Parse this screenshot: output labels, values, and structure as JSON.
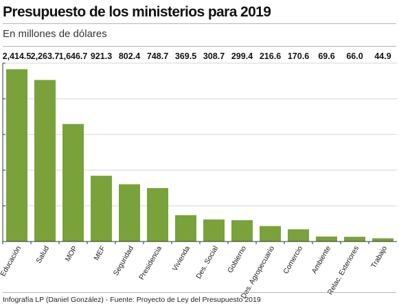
{
  "header": {
    "title": "Presupuesto de los ministerios para 2019",
    "subtitle": "En millones de dólares"
  },
  "footer": {
    "credit": "Infografía LP (Daniel González) - Fuente: Proyecto de Ley del Presupuesto 2019"
  },
  "colors": {
    "bar": "#7aa23a",
    "grid": "#d6d6d6",
    "axis": "#333333"
  },
  "chart_data": {
    "type": "bar",
    "title": "Presupuesto de los ministerios para 2019",
    "subtitle": "En millones de dólares",
    "categories": [
      "Educación",
      "Salud",
      "MOP",
      "MEF",
      "Seguridad",
      "Presidencia",
      "Vivienda",
      "Des. Social",
      "Gobierno",
      "Des. Agropecuario",
      "Comercio",
      "Ambiente",
      "Relac. Exteriores",
      "Trabajo"
    ],
    "values": [
      2414.5,
      2263.7,
      1646.7,
      921.3,
      802.4,
      748.7,
      369.5,
      308.7,
      299.4,
      216.6,
      170.6,
      69.6,
      66.0,
      44.9
    ],
    "value_labels": [
      "2,414.5",
      "2,263.7",
      "1,646.7",
      "921.3",
      "802.4",
      "748.7",
      "369.5",
      "308.7",
      "299.4",
      "216.6",
      "170.6",
      "69.6",
      "66.0",
      "44.9"
    ],
    "ylim": [
      0,
      2500
    ],
    "yticks": [
      0,
      500,
      1000,
      1500,
      2000,
      2500
    ],
    "grid": true,
    "legend": "none"
  }
}
